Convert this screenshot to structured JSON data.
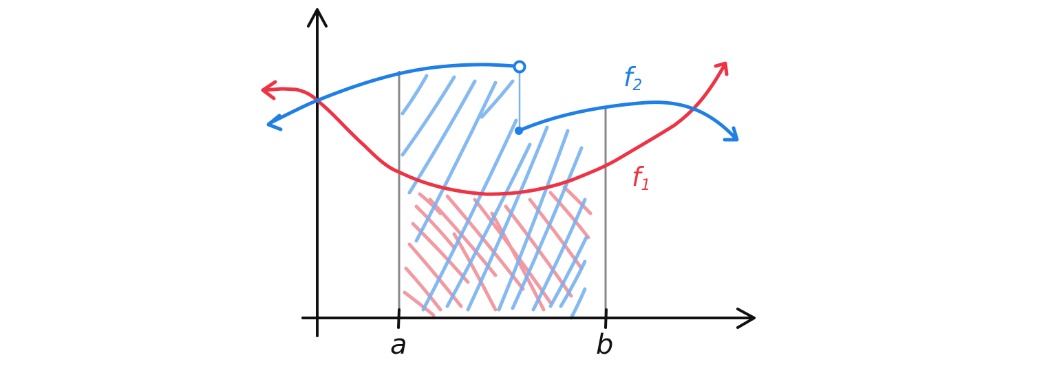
{
  "labels": {
    "tick_a": "a",
    "tick_b": "b",
    "f1_name": "f",
    "f1_subscript": "1",
    "f2_name": "f",
    "f2_subscript": "2"
  },
  "colors": {
    "axis": "#111111",
    "bound_line": "#888888",
    "f1": "#ee3344",
    "f2": "#1e7fe6",
    "f1_hatch": "#f28e98",
    "f2_hatch": "#78b2f0"
  }
}
